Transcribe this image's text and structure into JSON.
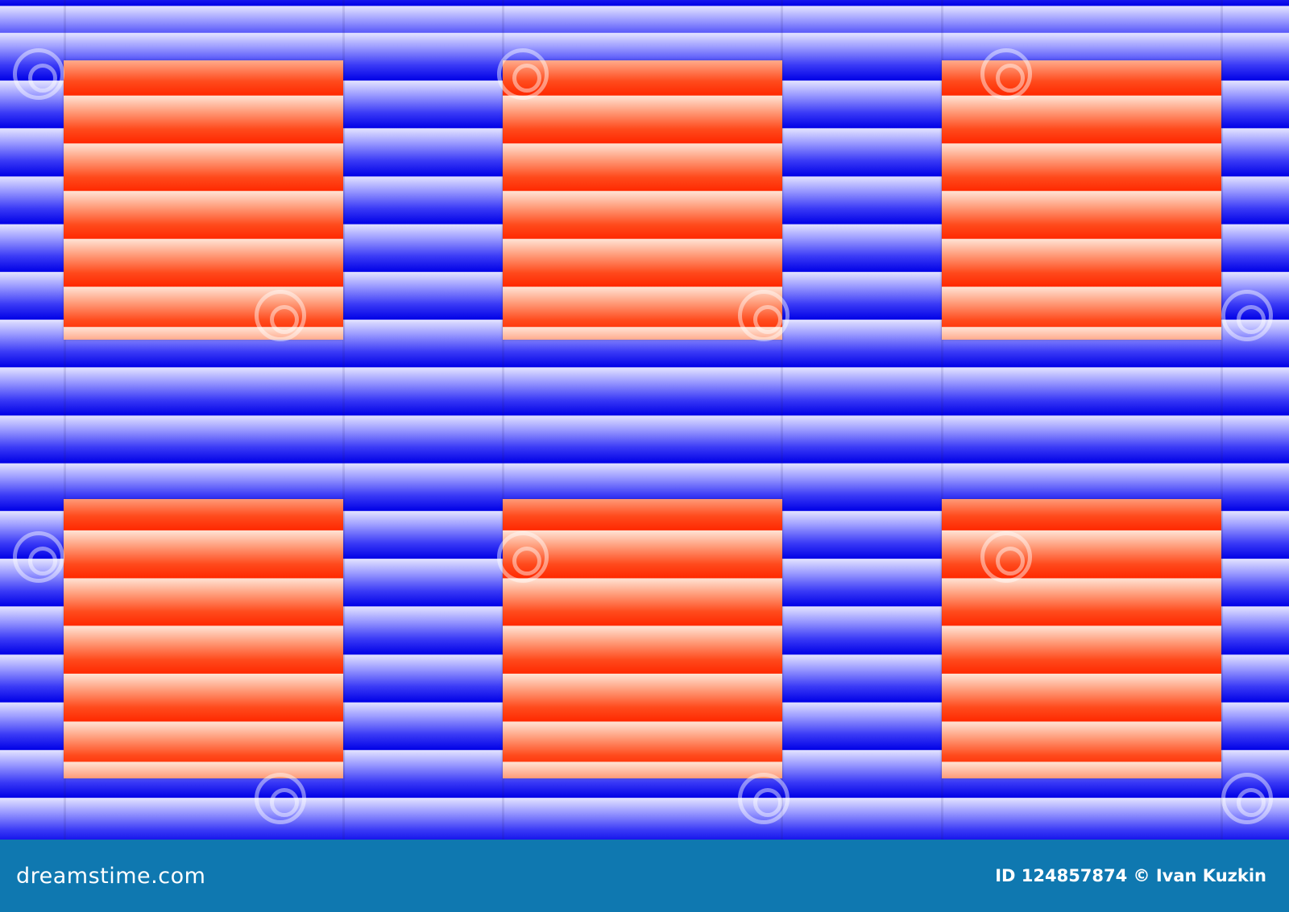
{
  "colors": {
    "blue_light": "#e4e4ff",
    "blue_dark": "#0000e6",
    "red_light": "#ffe4d6",
    "red_dark": "#ff2800",
    "footer": "#0f78b0"
  },
  "watermark_icon": "spiral-logo-icon",
  "footer": {
    "logo": "dreamstime.com",
    "credit": "ID 124857874 © Ivan Kuzkin"
  }
}
